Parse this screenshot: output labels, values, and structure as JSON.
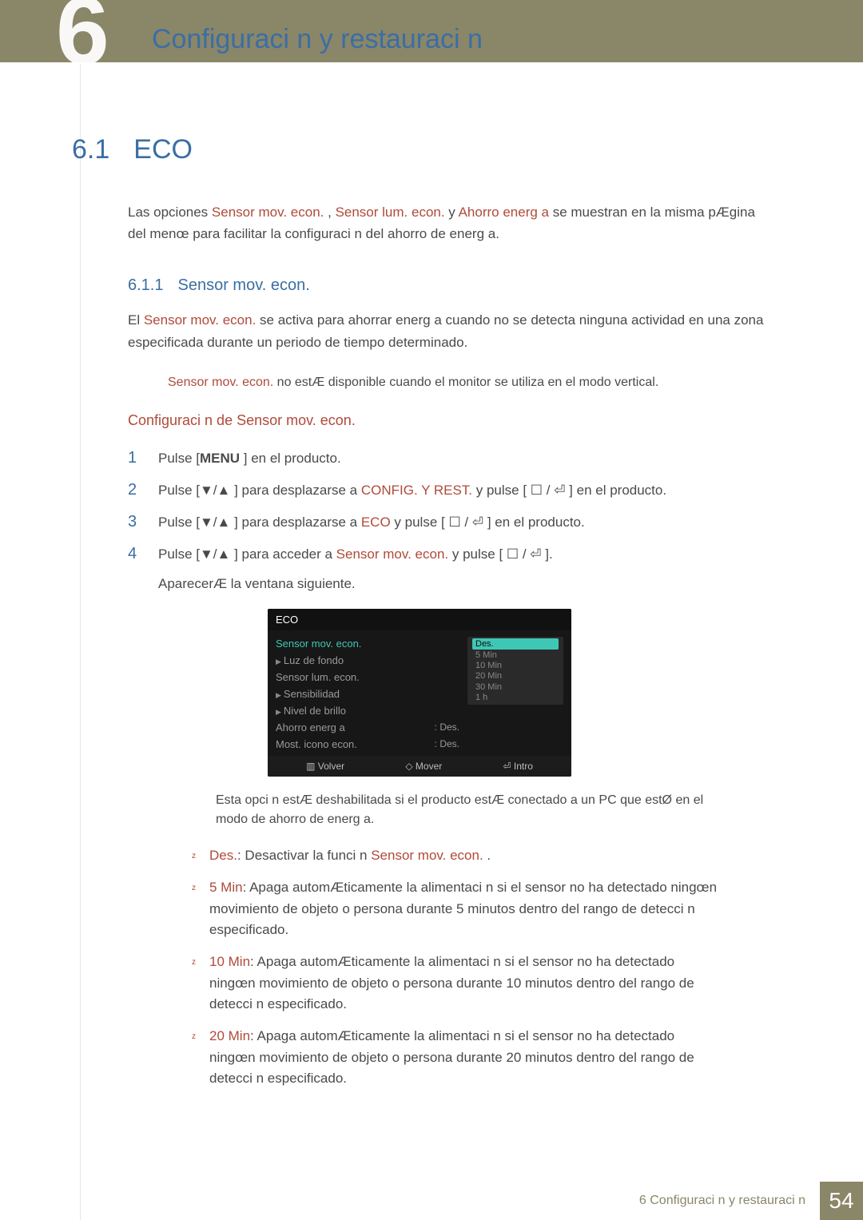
{
  "header": {
    "chapter_num_glyph": "6",
    "chapter_title": "Configuraci n y restauraci n"
  },
  "h1": {
    "num": "6.1",
    "title": "ECO"
  },
  "intro": {
    "pre": "Las opciones ",
    "k1": "Sensor mov. econ.",
    "sep1": " , ",
    "k2": "Sensor lum. econ.",
    "sep2": " y ",
    "k3": "Ahorro energ a",
    "post": " se muestran en la misma pÆgina del menœ para facilitar la configuraci n del ahorro de energ a."
  },
  "h2": {
    "num": "6.1.1",
    "title": "Sensor mov. econ."
  },
  "desc": {
    "pre": "El ",
    "k1": "Sensor mov. econ.",
    "post": " se activa para ahorrar energ a cuando no se detecta ninguna actividad en una zona especificada durante un periodo de tiempo determinado."
  },
  "note1": {
    "k1": "Sensor mov. econ.",
    "post": " no estÆ disponible cuando el monitor se utiliza en el modo vertical."
  },
  "h3": "Configuraci n de Sensor mov. econ.",
  "steps": [
    {
      "n": "1",
      "pre": "Pulse [",
      "bold": "MENU",
      "mid": " ] en el producto.",
      "hi": "",
      "post": ""
    },
    {
      "n": "2",
      "pre": "Pulse [▼/▲ ] para desplazarse a ",
      "hi": "CONFIG. Y REST.",
      "post": " y pulse [ ☐ / ⏎ ] en el producto."
    },
    {
      "n": "3",
      "pre": "Pulse [▼/▲ ] para desplazarse a ",
      "hi": "ECO",
      "post": " y pulse [ ☐ / ⏎ ] en el producto."
    },
    {
      "n": "4",
      "pre": "Pulse [▼/▲ ] para acceder a ",
      "hi": "Sensor mov. econ.",
      "post": " y pulse [ ☐ / ⏎ ]."
    }
  ],
  "afterstep": "AparecerÆ la ventana siguiente.",
  "osd": {
    "title": "ECO",
    "rows": [
      {
        "label": "Sensor mov. econ.",
        "active": true
      },
      {
        "label": "Luz de fondo",
        "tri": true
      },
      {
        "label": "Sensor lum. econ."
      },
      {
        "label": "Sensibilidad",
        "tri": true
      },
      {
        "label": "Nivel de brillo",
        "tri": true
      },
      {
        "label": "Ahorro energ a",
        "val": ": Des."
      },
      {
        "label": "Most. icono econ.",
        "val": ": Des."
      }
    ],
    "dropdown": {
      "selected": "Des.",
      "options": [
        "5 Min",
        "10 Min",
        "20 Min",
        "30 Min",
        "1 h"
      ]
    },
    "footer": [
      "Volver",
      "Mover",
      "Intro"
    ],
    "colors": {
      "bg": "#171717",
      "accent": "#3fc7b5",
      "text": "#9a9a9a"
    }
  },
  "subnote": "Esta opci n estÆ deshabilitada si el producto estÆ conectado a un PC que estØ en el modo de ahorro de energ a.",
  "bullets": [
    {
      "k": "Des.",
      "sep": ": ",
      "body": "Desactivar la funci n ",
      "k2": "Sensor mov. econ.",
      "tail": " ."
    },
    {
      "k": "5 Min",
      "sep": ": ",
      "body": "Apaga automÆticamente la alimentaci n si el sensor no ha detectado ningœn movimiento de objeto o persona durante 5 minutos dentro del rango de detecci n especificado."
    },
    {
      "k": "10 Min",
      "sep": ": ",
      "body": "Apaga automÆticamente la alimentaci n si el sensor no ha detectado ningœn movimiento de objeto o persona durante 10 minutos dentro del rango de detecci n especificado."
    },
    {
      "k": "20 Min",
      "sep": ": ",
      "body": "Apaga automÆticamente la alimentaci n si el sensor no ha detectado ningœn movimiento de objeto o persona durante 20 minutos dentro del rango de detecci n especificado."
    }
  ],
  "footer": {
    "txt": "6 Configuraci n y restauraci n",
    "page": "54"
  },
  "colors": {
    "banner_bg": "#8a8668",
    "heading_blue": "#3a6ea5",
    "highlight_red": "#b04a3a",
    "body_text": "#4a4a4a"
  }
}
